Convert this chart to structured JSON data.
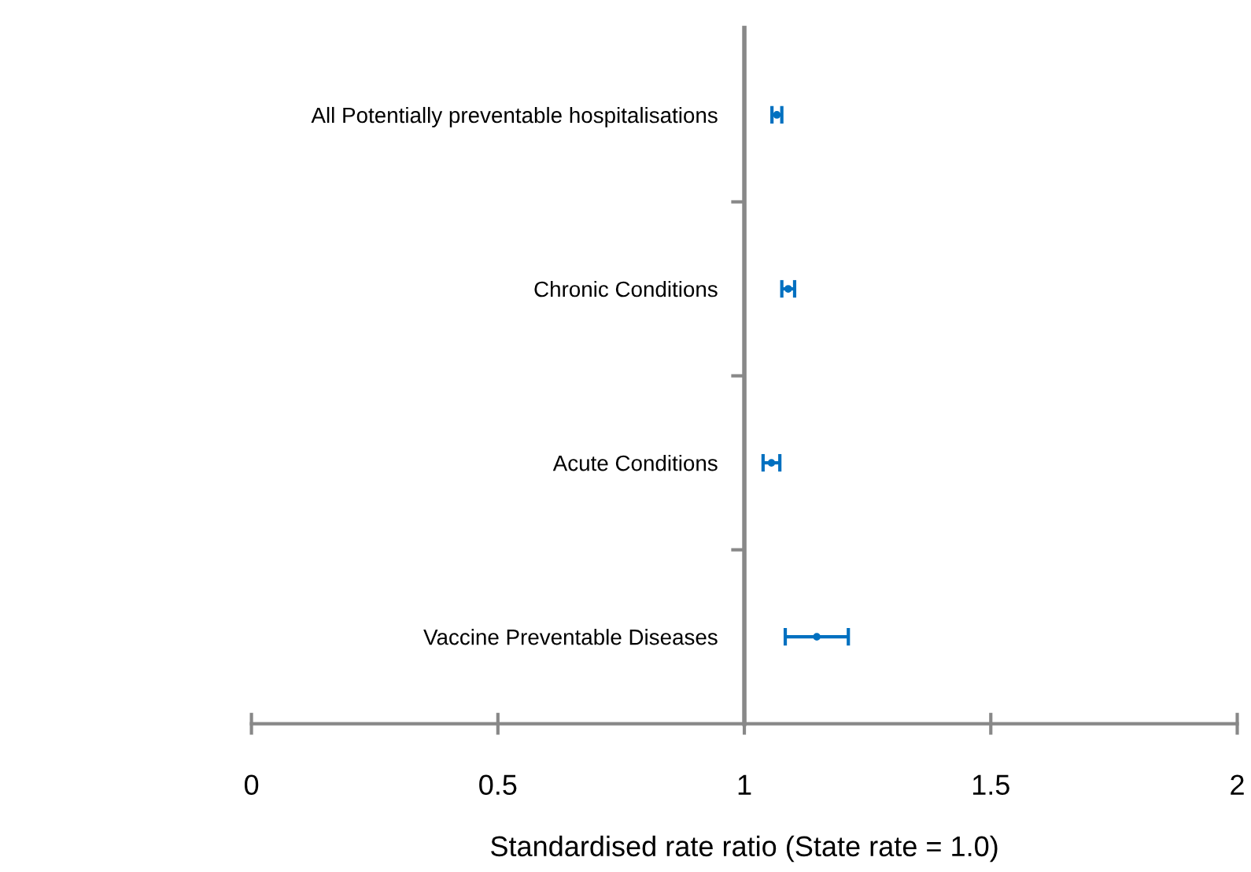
{
  "chart_data": {
    "type": "scatter",
    "orientation": "horizontal",
    "categories": [
      "All Potentially preventable hospitalisations",
      "Chronic Conditions",
      "Acute Conditions",
      "Vaccine Preventable Diseases"
    ],
    "values": [
      1.066,
      1.089,
      1.055,
      1.147
    ],
    "errors": [
      0.01,
      0.013,
      0.017,
      0.064
    ],
    "color": "#0070c0",
    "xlim": [
      0,
      2
    ],
    "xticks": [
      0,
      0.5,
      1,
      1.5,
      2
    ],
    "xlabel": "Standardised rate ratio (State rate = 1.0)",
    "grid": false
  }
}
